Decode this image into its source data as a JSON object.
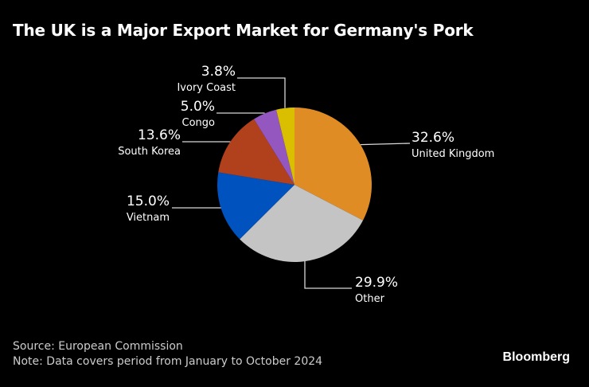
{
  "chart_data": {
    "type": "pie",
    "title": "The UK is a Major Export Market for Germany's Pork",
    "start_angle_deg": 0,
    "direction": "clockwise",
    "slices": [
      {
        "label": "United Kingdom",
        "value": 32.6,
        "value_label": "32.6%",
        "color": "#E08C25"
      },
      {
        "label": "Other",
        "value": 29.9,
        "value_label": "29.9%",
        "color": "#C4C4C4"
      },
      {
        "label": "Vietnam",
        "value": 15.0,
        "value_label": "15.0%",
        "color": "#0052BE"
      },
      {
        "label": "South Korea",
        "value": 13.6,
        "value_label": "13.6%",
        "color": "#B1401D"
      },
      {
        "label": "Congo",
        "value": 5.0,
        "value_label": "5.0%",
        "color": "#9457C0"
      },
      {
        "label": "Ivory Coast",
        "value": 3.8,
        "value_label": "3.8%",
        "color": "#D9BF00"
      }
    ],
    "source": "Source: European Commission",
    "note": "Note: Data covers period from January to October 2024"
  },
  "brand": "Bloomberg"
}
